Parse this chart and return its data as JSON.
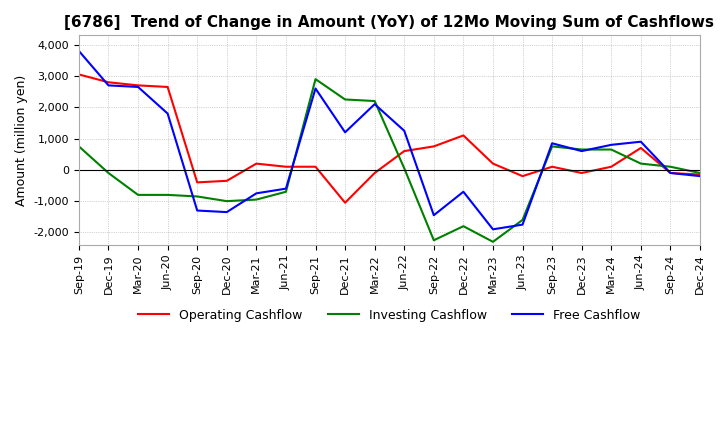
{
  "title": "[6786]  Trend of Change in Amount (YoY) of 12Mo Moving Sum of Cashflows",
  "ylabel": "Amount (million yen)",
  "ylim": [
    -2400,
    4300
  ],
  "yticks": [
    -2000,
    -1000,
    0,
    1000,
    2000,
    3000,
    4000
  ],
  "x_labels": [
    "Sep-19",
    "Dec-19",
    "Mar-20",
    "Jun-20",
    "Sep-20",
    "Dec-20",
    "Mar-21",
    "Jun-21",
    "Sep-21",
    "Dec-21",
    "Mar-22",
    "Jun-22",
    "Sep-22",
    "Dec-22",
    "Mar-23",
    "Jun-23",
    "Sep-23",
    "Dec-23",
    "Mar-24",
    "Jun-24",
    "Sep-24",
    "Dec-24"
  ],
  "operating": [
    3050,
    2800,
    2700,
    2650,
    -400,
    -350,
    200,
    100,
    100,
    -1050,
    -100,
    600,
    750,
    1100,
    200,
    -200,
    100,
    -100,
    100,
    700,
    -100,
    -150
  ],
  "investing": [
    750,
    -100,
    -800,
    -800,
    -850,
    -1000,
    -950,
    -700,
    2900,
    2250,
    2200,
    50,
    -2250,
    -1800,
    -2300,
    -1600,
    750,
    650,
    650,
    200,
    100,
    -100
  ],
  "free": [
    3800,
    2700,
    2650,
    1800,
    -1300,
    -1350,
    -750,
    -600,
    2600,
    1200,
    2100,
    1250,
    -1450,
    -700,
    -1900,
    -1750,
    850,
    600,
    800,
    900,
    -100,
    -200
  ],
  "operating_color": "#ff0000",
  "investing_color": "#008000",
  "free_color": "#0000ff",
  "background_color": "#ffffff",
  "grid_color": "#aaaaaa",
  "title_fontsize": 11,
  "legend_fontsize": 9,
  "tick_fontsize": 8
}
